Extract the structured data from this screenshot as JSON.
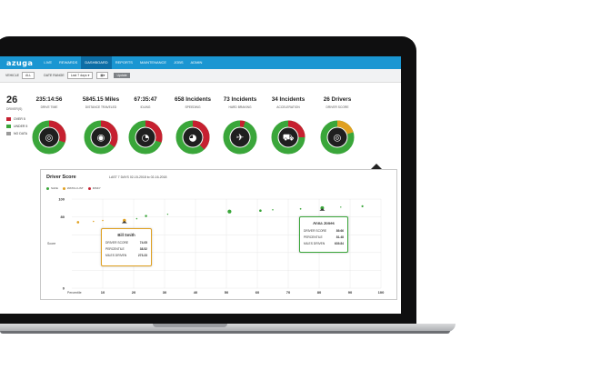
{
  "app": {
    "logo": "azuga",
    "nav": [
      "LIVE",
      "REWARDS",
      "DASHBOARD",
      "REPORTS",
      "MAINTENANCE",
      "JOBS",
      "ADMIN"
    ],
    "nav_active": "DASHBOARD"
  },
  "filters": {
    "vehicle_label": "VEHICLE",
    "vehicle_value": "ALL",
    "date_label": "DATE RANGE",
    "date_value": "Last 7 days ▾",
    "update_label": "Update"
  },
  "summary": {
    "total": "26",
    "total_label": "DRIVER(S)",
    "legend": [
      {
        "label": "OVER 5",
        "color": "#c62030"
      },
      {
        "label": "UNDER 5",
        "color": "#3aa63a"
      },
      {
        "label": "NO DATA",
        "color": "#9a9a9a"
      }
    ]
  },
  "metrics": [
    {
      "value": "235:14:56",
      "label": "DRIVE TIME",
      "icon": "steering-wheel-icon",
      "red": 0.3,
      "yellow": 0.0
    },
    {
      "value": "5845.15 Miles",
      "label": "DISTANCE TRAVELED",
      "icon": "odometer-icon",
      "red": 0.35,
      "yellow": 0.0
    },
    {
      "value": "67:35:47",
      "label": "IDLING",
      "icon": "idle-gauge-icon",
      "red": 0.3,
      "yellow": 0.0
    },
    {
      "value": "658 Incidents",
      "label": "SPEEDING",
      "icon": "speed-gauge-icon",
      "red": 0.38,
      "yellow": 0.0
    },
    {
      "value": "73 Incidents",
      "label": "HARD BRAKING",
      "icon": "hard-braking-icon",
      "red": 0.05,
      "yellow": 0.0
    },
    {
      "value": "34 Incidents",
      "label": "ACCELERATION",
      "icon": "truck-icon",
      "red": 0.25,
      "yellow": 0.0
    },
    {
      "value": "26 Drivers",
      "label": "DRIVER SCORE",
      "icon": "steering-wheel-icon",
      "red": 0.0,
      "yellow": 0.2
    }
  ],
  "panel": {
    "title": "Driver Score",
    "range": "LAST 7 DAYS    02-15-2018 to 02-16-2018",
    "legend": [
      {
        "label": "SAFE",
        "color": "#3aa63a"
      },
      {
        "label": "WATCH LIST",
        "color": "#e0a020"
      },
      {
        "label": "RISKY",
        "color": "#c62030"
      }
    ]
  },
  "chart_data": {
    "type": "scatter",
    "title": "Driver Score",
    "xlabel": "Percentile",
    "ylabel": "Score",
    "xlim": [
      0,
      100
    ],
    "ylim": [
      0,
      100
    ],
    "x_ticks": [
      10,
      20,
      30,
      40,
      50,
      60,
      70,
      80,
      90,
      100
    ],
    "y_ticks": [
      0,
      20,
      40,
      60,
      80,
      100
    ],
    "x_tick_labels": [
      "10",
      "20",
      "30",
      "40",
      "50",
      "60",
      "70",
      "80",
      "90",
      "100"
    ],
    "y_tick_labels": [
      "0",
      "",
      "",
      "",
      "80",
      "100"
    ],
    "points": [
      {
        "x": 2,
        "y": 74,
        "r": 1.2,
        "color": "#e0a020"
      },
      {
        "x": 7,
        "y": 75,
        "r": 0.7,
        "color": "#e0a020"
      },
      {
        "x": 10,
        "y": 76,
        "r": 0.7,
        "color": "#e0a020"
      },
      {
        "x": 17,
        "y": 76,
        "r": 1.6,
        "color": "#e0a020"
      },
      {
        "x": 21,
        "y": 78,
        "r": 0.7,
        "color": "#3aa63a"
      },
      {
        "x": 24,
        "y": 81,
        "r": 1.1,
        "color": "#3aa63a"
      },
      {
        "x": 31,
        "y": 83,
        "r": 0.6,
        "color": "#3aa63a"
      },
      {
        "x": 51,
        "y": 86,
        "r": 1.9,
        "color": "#3aa63a"
      },
      {
        "x": 61,
        "y": 87,
        "r": 1.2,
        "color": "#3aa63a"
      },
      {
        "x": 65,
        "y": 88,
        "r": 0.7,
        "color": "#3aa63a"
      },
      {
        "x": 74,
        "y": 89,
        "r": 0.8,
        "color": "#3aa63a"
      },
      {
        "x": 81,
        "y": 90,
        "r": 1.8,
        "color": "#3aa63a"
      },
      {
        "x": 87,
        "y": 91,
        "r": 0.6,
        "color": "#3aa63a"
      },
      {
        "x": 94,
        "y": 92,
        "r": 1.0,
        "color": "#3aa63a"
      }
    ]
  },
  "tooltips": [
    {
      "name": "Bill Smith",
      "rows": [
        {
          "k": "DRIVER SCORE",
          "v": "74.05"
        },
        {
          "k": "PERCENTILE",
          "v": "38.52"
        },
        {
          "k": "MILES DRIVEN",
          "v": "273.23"
        }
      ]
    },
    {
      "name": "Anna Jones",
      "rows": [
        {
          "k": "DRIVER SCORE",
          "v": "89.66"
        },
        {
          "k": "PERCENTILE",
          "v": "81.48"
        },
        {
          "k": "MILES DRIVEN",
          "v": "639.84"
        }
      ]
    }
  ]
}
